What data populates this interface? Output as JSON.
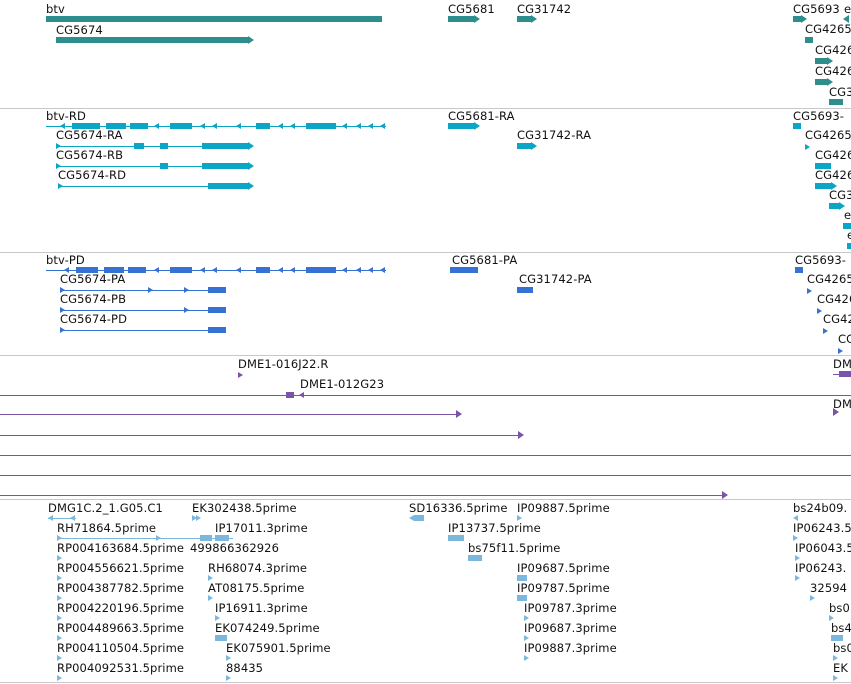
{
  "colors": {
    "gene": "#2e8e8e",
    "transcript": "#0ba5c6",
    "protein": "#3572d4",
    "clone": "#7b53a8",
    "est": "#7cb8dd",
    "divider": "#c8c8c8"
  },
  "tracks": {
    "genes": {
      "labels": [
        "btv",
        "CG5674",
        "CG5681",
        "CG31742",
        "CG5693",
        "e",
        "CG4265",
        "CG426",
        "CG426",
        "CG3"
      ]
    },
    "transcripts": {
      "labels": [
        "btv-RD",
        "CG5674-RA",
        "CG5674-RB",
        "CG5674-RD",
        "CG5681-RA",
        "CG31742-RA",
        "CG5693-",
        "CG4265",
        "CG426",
        "CG426",
        "CG3",
        "e",
        "e"
      ]
    },
    "proteins": {
      "labels": [
        "btv-PD",
        "CG5674-PA",
        "CG5674-PB",
        "CG5674-PD",
        "CG5681-PA",
        "CG31742-PA",
        "CG5693-",
        "CG4265",
        "CG426",
        "CG42",
        "CG"
      ]
    },
    "clones": {
      "labels": [
        "DME1-016J22.R",
        "DME1-012G23",
        "DM",
        "DM"
      ]
    },
    "ests": {
      "labels": [
        "DMG1C.2_1.G05.C1",
        "EK302438.5prime",
        "SD16336.5prime",
        "IP09887.5prime",
        "bs24b09.",
        "RH71864.5prime",
        "IP17011.3prime",
        "IP13737.5prime",
        "IP06243.5",
        "RP004163684.5prime",
        "499866362926",
        "bs75f11.5prime",
        "IP06043.5",
        "RP004556621.5prime",
        "RH68074.3prime",
        "IP09687.5prime",
        "IP06243.",
        "RP004387782.5prime",
        "AT08175.5prime",
        "IP09787.5prime",
        "32594",
        "RP004220196.5prime",
        "IP16911.3prime",
        "IP09787.3prime",
        "bs0",
        "RP004489663.5prime",
        "EK074249.5prime",
        "IP09687.3prime",
        "bs4",
        "RP004110504.5prime",
        "EK075901.5prime",
        "IP09887.3prime",
        "bs0",
        "RP004092531.5prime",
        "88435",
        "EK"
      ]
    }
  }
}
